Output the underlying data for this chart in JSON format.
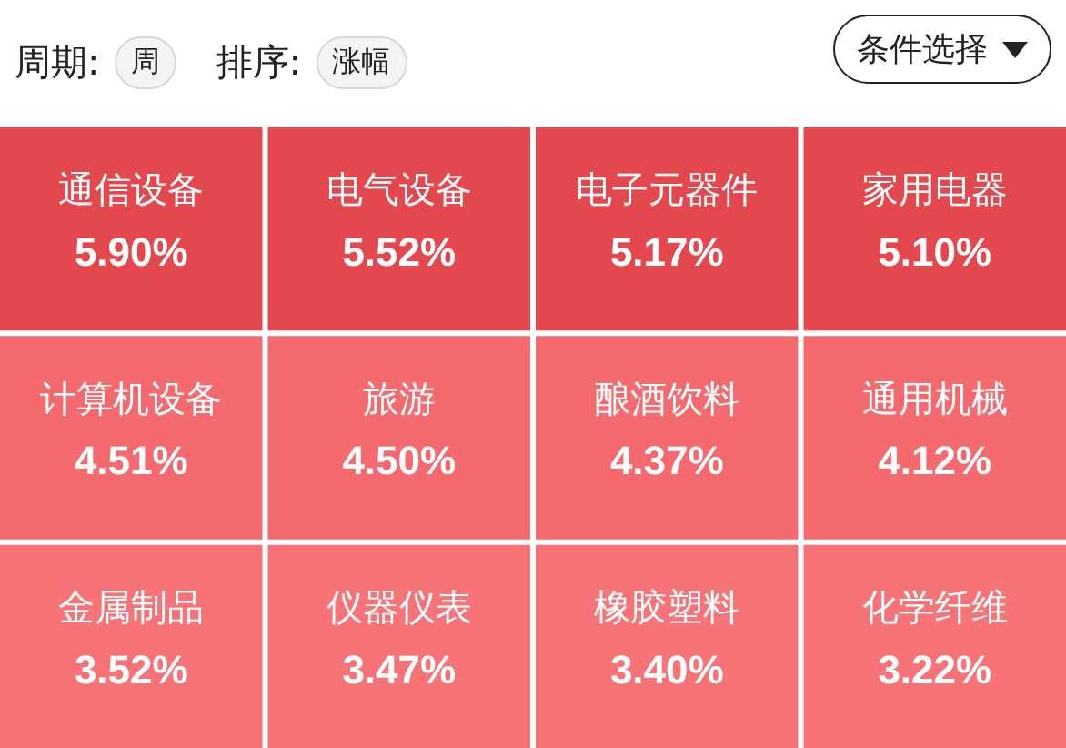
{
  "chart_data": {
    "type": "other",
    "categories": [
      "通信设备",
      "电气设备",
      "电子元器件",
      "家用电器",
      "计算机设备",
      "旅游",
      "酿酒饮料",
      "通用机械",
      "金属制品",
      "仪器仪表",
      "橡胶塑料",
      "化学纤维"
    ],
    "values": [
      5.9,
      5.52,
      5.17,
      5.1,
      4.51,
      4.5,
      4.37,
      4.12,
      3.52,
      3.47,
      3.4,
      3.22
    ],
    "value_labels": [
      "5.90%",
      "5.52%",
      "5.17%",
      "5.10%",
      "4.51%",
      "4.50%",
      "4.37%",
      "4.12%",
      "3.52%",
      "3.47%",
      "3.40%",
      "3.22%"
    ],
    "colors": [
      "#e4484f",
      "#e4484f",
      "#e4484f",
      "#e4484f",
      "#f46a6e",
      "#f46a6e",
      "#f46a6e",
      "#f46a6e",
      "#f67477",
      "#f67477",
      "#f67477",
      "#f67477"
    ],
    "annotations": [
      "周期:",
      "周",
      "排序:",
      "涨幅",
      "条件选择"
    ]
  }
}
